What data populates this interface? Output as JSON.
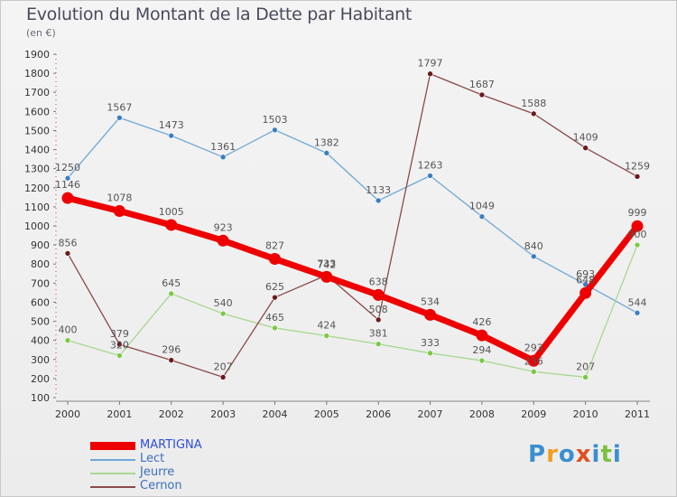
{
  "title": "Evolution du Montant de la Dette par Habitant",
  "subtitle": "(en €)",
  "logo": {
    "letters": [
      "P",
      "r",
      "o",
      "x",
      "i",
      "t",
      "i"
    ],
    "colors": [
      "#3a8fd0",
      "#f0a020",
      "#3a8fd0",
      "#e05020",
      "#3a8fd0",
      "#7bc040",
      "#3a8fd0"
    ]
  },
  "chart_data": {
    "type": "line",
    "x": [
      "2000",
      "2001",
      "2002",
      "2003",
      "2004",
      "2005",
      "2006",
      "2007",
      "2008",
      "2009",
      "2010",
      "2011"
    ],
    "ylim": [
      100,
      1900
    ],
    "yticks": [
      100,
      200,
      300,
      400,
      500,
      600,
      700,
      800,
      900,
      1000,
      1100,
      1200,
      1300,
      1400,
      1500,
      1600,
      1700,
      1800,
      1900
    ],
    "grid": false,
    "legend_position": "bottom-left",
    "series": [
      {
        "name": "Lect",
        "color": "#6fa8d6",
        "marker": "#3a7fc0",
        "width": 1.3,
        "labelColor": "#555555",
        "values": [
          1250,
          1567,
          1473,
          1361,
          1503,
          1382,
          1133,
          1263,
          1049,
          840,
          693,
          544
        ],
        "labels": [
          "1250",
          "1567",
          "1473",
          "1361",
          "1503",
          "1382",
          "1133",
          "1263",
          "1049",
          "840",
          "693",
          "544"
        ]
      },
      {
        "name": "Jeurre",
        "color": "#a8d890",
        "marker": "#7ac943",
        "width": 1.3,
        "labelColor": "#555555",
        "values": [
          400,
          320,
          645,
          540,
          465,
          424,
          381,
          333,
          294,
          236,
          207,
          900
        ],
        "labels": [
          "400",
          "320",
          "645",
          "540",
          "465",
          "424",
          "381",
          "333",
          "294",
          "236",
          "207",
          "900"
        ]
      },
      {
        "name": "Cernon",
        "color": "#8a4a4a",
        "marker": "#6b1a1a",
        "width": 1.3,
        "labelColor": "#555555",
        "values": [
          856,
          379,
          296,
          207,
          625,
          742,
          508,
          1797,
          1687,
          1588,
          1409,
          1259
        ],
        "labels": [
          "856",
          "379",
          "296",
          "207",
          "625",
          "742",
          "508",
          "1797",
          "1687",
          "1588",
          "1409",
          "1259"
        ]
      },
      {
        "name": "MARTIGNA",
        "color": "#ee0000",
        "marker": "#ee0000",
        "width": 7,
        "labelColor": "#555555",
        "values": [
          1146,
          1078,
          1005,
          923,
          827,
          733,
          638,
          534,
          426,
          293,
          648,
          999
        ],
        "labels": [
          "1146",
          "1078",
          "1005",
          "923",
          "827",
          "733",
          "638",
          "534",
          "426",
          "293",
          "648",
          "999"
        ]
      }
    ],
    "legend": [
      {
        "name": "MARTIGNA",
        "color": "#ee0000",
        "textColor": "#2f4fd8",
        "thick": true
      },
      {
        "name": "Lect",
        "color": "#6fa8d6",
        "textColor": "#3a6fc0",
        "thick": false
      },
      {
        "name": "Jeurre",
        "color": "#a8d890",
        "textColor": "#3a6fc0",
        "thick": false
      },
      {
        "name": "Cernon",
        "color": "#8a4a4a",
        "textColor": "#3a6fc0",
        "thick": false
      }
    ]
  }
}
